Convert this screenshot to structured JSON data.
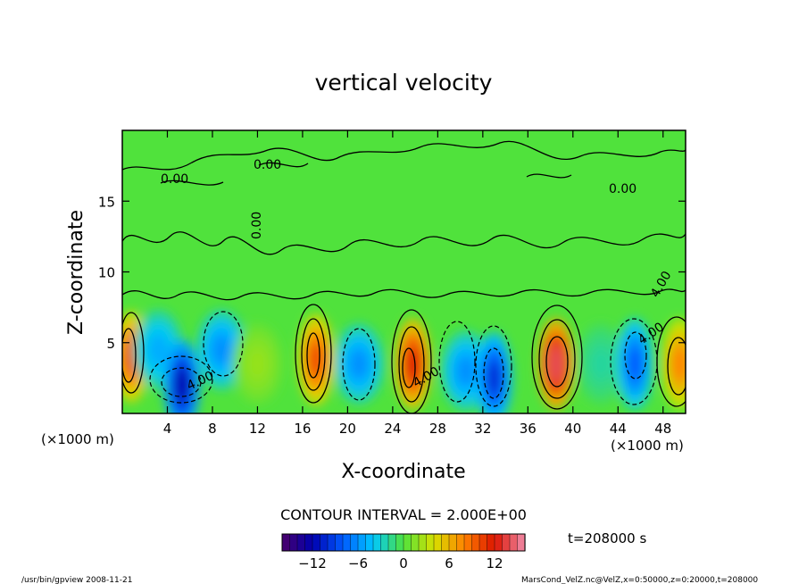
{
  "chart_data": {
    "type": "heatmap",
    "title": "vertical velocity",
    "xlabel": "X-coordinate",
    "ylabel": "Z-coordinate",
    "x_unit_left": "(×1000 m)",
    "x_unit_right": "(×1000 m)",
    "xlim": [
      0,
      50
    ],
    "ylim": [
      0,
      20
    ],
    "x_ticks": [
      "4",
      "8",
      "12",
      "16",
      "20",
      "24",
      "28",
      "32",
      "36",
      "40",
      "44",
      "48"
    ],
    "y_ticks": [
      "5",
      "10",
      "15"
    ],
    "contour_labels": [
      "0.00",
      "0.00",
      "0.00",
      "0.00",
      "4.00",
      "4.00",
      "4.00",
      "4.00"
    ],
    "cells": [
      {
        "x": 0.8,
        "z": 4.0,
        "w": 10.0
      },
      {
        "x": 3.2,
        "z": 4.5,
        "w": -5.0
      },
      {
        "x": 5.3,
        "z": 2.0,
        "w": -12.0
      },
      {
        "x": 8.8,
        "z": 4.5,
        "w": -6.0
      },
      {
        "x": 12.0,
        "z": 3.5,
        "w": 2.0
      },
      {
        "x": 17.2,
        "z": 3.8,
        "w": 10.0
      },
      {
        "x": 21.0,
        "z": 3.5,
        "w": -6.0
      },
      {
        "x": 25.8,
        "z": 3.5,
        "w": 12.0
      },
      {
        "x": 30.5,
        "z": 3.0,
        "w": -6.0
      },
      {
        "x": 33.0,
        "z": 2.5,
        "w": -10.0
      },
      {
        "x": 38.5,
        "z": 3.5,
        "w": 14.0
      },
      {
        "x": 42.5,
        "z": 3.5,
        "w": -2.0
      },
      {
        "x": 45.5,
        "z": 3.5,
        "w": -8.0
      },
      {
        "x": 49.5,
        "z": 3.5,
        "w": 8.0
      }
    ],
    "colorbar": {
      "range": [
        -16,
        16
      ],
      "ticks": [
        "−12",
        "−6",
        "0",
        "6",
        "12"
      ],
      "tick_values": [
        -12,
        -6,
        0,
        6,
        12
      ]
    },
    "contour_interval_text": "CONTOUR INTERVAL = 2.000E+00",
    "time_text": "t=208000 s",
    "footer_left": "/usr/bin/gpview  2008-11-21",
    "footer_right": "MarsCond_VelZ.nc@VelZ,x=0:50000,z=0:20000,t=208000"
  }
}
